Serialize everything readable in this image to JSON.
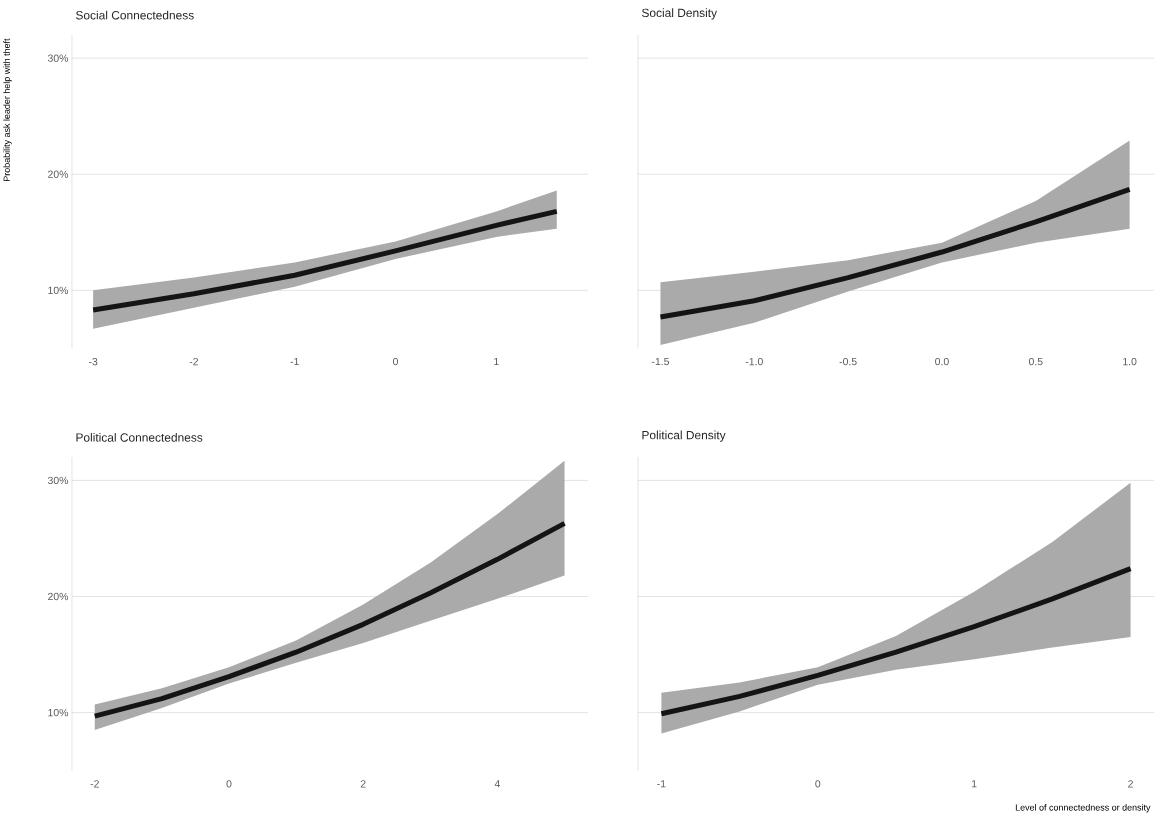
{
  "chart_data": [
    {
      "type": "line",
      "title": "Social Connectedness",
      "ylabel": "Probability ask leader help with theft",
      "grid": "y",
      "xlim": [
        -3.21,
        1.91
      ],
      "xticks": [
        -3,
        -2,
        -1,
        0,
        1
      ],
      "ylim": [
        5,
        32
      ],
      "yticks": [
        {
          "value": 10,
          "label": "10%"
        },
        {
          "value": 20,
          "label": "20%"
        },
        {
          "value": 30,
          "label": "30%"
        }
      ],
      "x": [
        -3,
        -2,
        -1,
        0,
        1,
        1.6
      ],
      "series": [
        {
          "color": "#141414",
          "values": [
            8.3,
            9.7,
            11.3,
            13.4,
            15.6,
            16.8
          ],
          "lower": [
            6.7,
            8.5,
            10.3,
            12.7,
            14.6,
            15.3
          ],
          "upper": [
            10.0,
            11.1,
            12.4,
            14.2,
            16.8,
            18.6
          ]
        }
      ]
    },
    {
      "type": "line",
      "title": "Social Density",
      "grid": "y",
      "tick_labels": "x",
      "xlim": [
        -1.62,
        1.13
      ],
      "xticks": [
        -1.5,
        {
          "value": -1,
          "label": "-1.0"
        },
        -0.5,
        {
          "value": 0,
          "label": "0.0"
        },
        0.5,
        {
          "value": 1,
          "label": "1.0"
        }
      ],
      "ylim": [
        5,
        32
      ],
      "yticks": [
        {
          "value": 10,
          "label": null
        },
        {
          "value": 20,
          "label": null
        },
        {
          "value": 30,
          "label": null
        }
      ],
      "x": [
        -1.5,
        -1,
        -0.5,
        0,
        0.5,
        1
      ],
      "series": [
        {
          "color": "#141414",
          "values": [
            7.7,
            9.1,
            11.1,
            13.3,
            15.9,
            18.7
          ],
          "lower": [
            5.3,
            7.2,
            9.9,
            12.4,
            14.1,
            15.3
          ],
          "upper": [
            10.7,
            11.6,
            12.6,
            14.1,
            17.7,
            22.9
          ]
        }
      ]
    },
    {
      "type": "line",
      "title": "Political Connectedness",
      "grid": "y",
      "xlim": [
        -2.34,
        5.35
      ],
      "xticks": [
        -2,
        0,
        2,
        4
      ],
      "ylim": [
        5,
        32
      ],
      "yticks": [
        {
          "value": 10,
          "label": "10%"
        },
        {
          "value": 20,
          "label": "20%"
        },
        {
          "value": 30,
          "label": "30%"
        }
      ],
      "x": [
        -2,
        -1,
        0,
        1,
        2,
        3,
        4,
        5
      ],
      "series": [
        {
          "color": "#141414",
          "values": [
            9.7,
            11.2,
            13.1,
            15.2,
            17.6,
            20.3,
            23.2,
            26.3
          ],
          "lower": [
            8.5,
            10.4,
            12.5,
            14.3,
            16.0,
            17.9,
            19.8,
            21.8
          ],
          "upper": [
            10.7,
            12.1,
            13.9,
            16.2,
            19.3,
            22.9,
            27.1,
            31.7
          ]
        }
      ]
    },
    {
      "type": "line",
      "title": "Political Density",
      "xlabel": "Level of connectedness or density",
      "grid": "y",
      "tick_labels": "x",
      "xlim": [
        -1.15,
        2.15
      ],
      "xticks": [
        -1,
        0,
        1,
        2
      ],
      "ylim": [
        5,
        32
      ],
      "yticks": [
        {
          "value": 10,
          "label": null
        },
        {
          "value": 20,
          "label": null
        },
        {
          "value": 30,
          "label": null
        }
      ],
      "x": [
        -1,
        -0.5,
        0,
        0.5,
        1,
        1.5,
        2
      ],
      "series": [
        {
          "color": "#141414",
          "values": [
            9.9,
            11.4,
            13.2,
            15.2,
            17.4,
            19.8,
            22.4
          ],
          "lower": [
            8.2,
            10.1,
            12.4,
            13.7,
            14.6,
            15.6,
            16.5
          ],
          "upper": [
            11.7,
            12.6,
            13.9,
            16.6,
            20.4,
            24.7,
            29.8
          ]
        }
      ]
    }
  ]
}
